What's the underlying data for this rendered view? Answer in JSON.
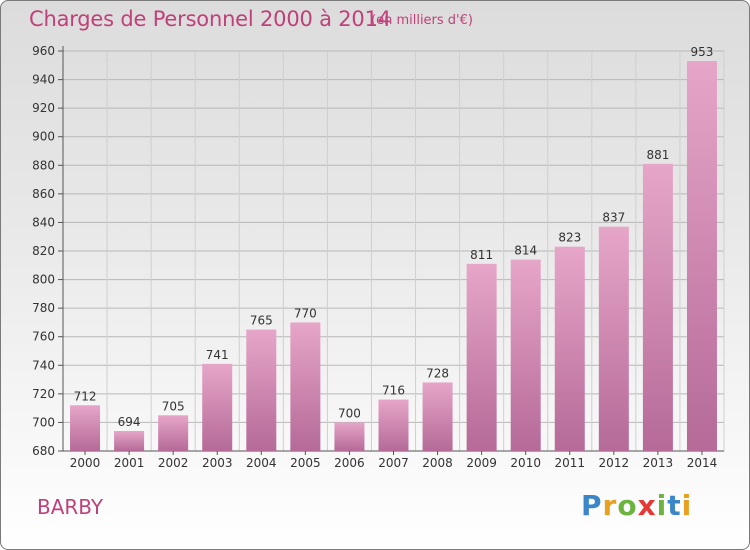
{
  "title": "Charges de Personnel 2000 à 2014",
  "subtitle": "(en milliers d'€)",
  "city": "BARBY",
  "logo": {
    "text": "Proxiti",
    "colors": {
      "blue": "#3a86c8",
      "orange": "#e8a020",
      "green": "#6cb33f",
      "red": "#e53935"
    }
  },
  "chart_data": {
    "type": "bar",
    "categories": [
      "2000",
      "2001",
      "2002",
      "2003",
      "2004",
      "2005",
      "2006",
      "2007",
      "2008",
      "2009",
      "2010",
      "2011",
      "2012",
      "2013",
      "2014"
    ],
    "values": [
      712,
      694,
      705,
      741,
      765,
      770,
      700,
      716,
      728,
      811,
      814,
      823,
      837,
      881,
      953
    ],
    "ylim": [
      680,
      960
    ],
    "yticks": [
      680,
      700,
      720,
      740,
      760,
      780,
      800,
      820,
      840,
      860,
      880,
      900,
      920,
      940,
      960
    ],
    "grid": true,
    "bar_color_top": "#e6a6c8",
    "bar_color_bottom": "#b56a98",
    "title_color": "#c0407a"
  }
}
